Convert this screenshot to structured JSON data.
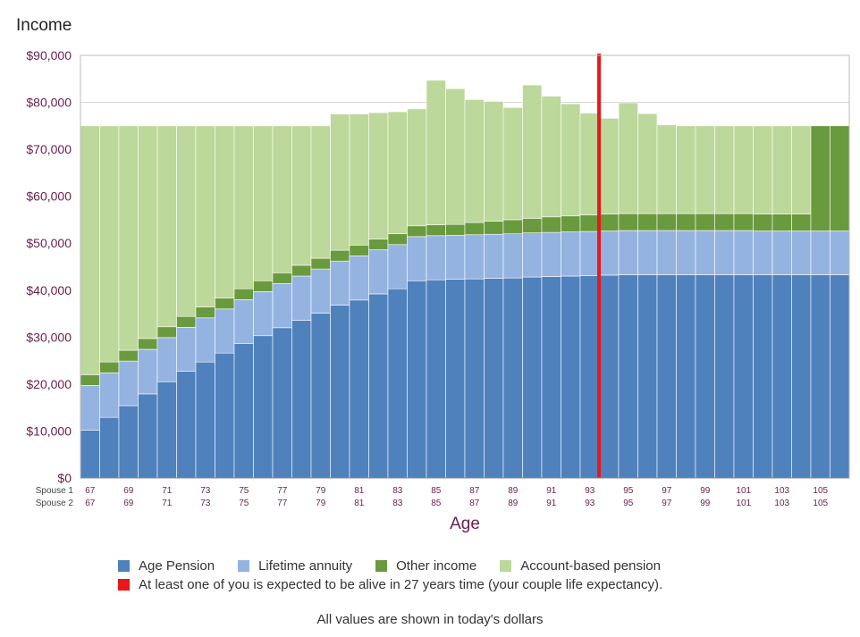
{
  "chart_data": {
    "type": "bar",
    "stacked": true,
    "y_axis_title": "Income",
    "xlabel": "Age",
    "ylim": [
      0,
      90000
    ],
    "yticks": [
      "$0",
      "$10,000",
      "$20,000",
      "$30,000",
      "$40,000",
      "$50,000",
      "$60,000",
      "$70,000",
      "$80,000",
      "$90,000"
    ],
    "row_labels": [
      "Spouse 1",
      "Spouse 2"
    ],
    "x_tick_labels": [
      "67",
      "69",
      "71",
      "73",
      "75",
      "77",
      "79",
      "81",
      "83",
      "85",
      "87",
      "89",
      "91",
      "93",
      "95",
      "97",
      "99",
      "101",
      "103",
      "105"
    ],
    "ages": [
      67,
      68,
      69,
      70,
      71,
      72,
      73,
      74,
      75,
      76,
      77,
      78,
      79,
      80,
      81,
      82,
      83,
      84,
      85,
      86,
      87,
      88,
      89,
      90,
      91,
      92,
      93,
      94,
      95,
      96,
      97,
      98,
      99,
      100,
      101,
      102,
      103,
      104,
      105,
      106
    ],
    "life_expectancy_age": 94,
    "series": [
      {
        "name": "Age Pension",
        "color": "#4f81bd",
        "values": [
          10200,
          12900,
          15400,
          17900,
          20500,
          22700,
          24700,
          26600,
          28600,
          30300,
          32000,
          33600,
          35100,
          36800,
          37900,
          39200,
          40300,
          42000,
          42200,
          42300,
          42400,
          42500,
          42600,
          42800,
          42900,
          43000,
          43100,
          43200,
          43300,
          43300,
          43300,
          43300,
          43300,
          43300,
          43300,
          43300,
          43300,
          43300,
          43300,
          43300
        ]
      },
      {
        "name": "Lifetime annuity",
        "color": "#95b3e0",
        "values": [
          9500,
          9500,
          9500,
          9500,
          9400,
          9400,
          9400,
          9400,
          9400,
          9400,
          9400,
          9400,
          9400,
          9400,
          9400,
          9400,
          9400,
          9400,
          9400,
          9400,
          9400,
          9400,
          9400,
          9400,
          9400,
          9400,
          9400,
          9400,
          9400,
          9400,
          9400,
          9400,
          9400,
          9400,
          9400,
          9300,
          9300,
          9300,
          9300,
          9300
        ]
      },
      {
        "name": "Other income",
        "color": "#6a9a3e",
        "values": [
          2300,
          2300,
          2300,
          2300,
          2300,
          2300,
          2300,
          2300,
          2300,
          2300,
          2300,
          2300,
          2300,
          2300,
          2300,
          2300,
          2300,
          2300,
          2300,
          2300,
          2600,
          2800,
          3000,
          3100,
          3300,
          3400,
          3500,
          3600,
          3600,
          3600,
          3600,
          3600,
          3600,
          3600,
          3600,
          3600,
          3600,
          3600,
          22400,
          22400
        ]
      },
      {
        "name": "Account-based pension",
        "color": "#bdd89b",
        "values": [
          53000,
          50300,
          47800,
          45300,
          42800,
          40600,
          38600,
          36700,
          34700,
          33000,
          31300,
          29700,
          28200,
          29000,
          27900,
          26900,
          26000,
          24900,
          30800,
          28900,
          26200,
          25500,
          23900,
          28400,
          25700,
          23900,
          21700,
          20400,
          23600,
          21300,
          18900,
          18700,
          18700,
          18700,
          18700,
          18800,
          18800,
          18800,
          0,
          0
        ]
      }
    ]
  },
  "legend": {
    "items": [
      {
        "label": "Age Pension",
        "color": "#4f81bd"
      },
      {
        "label": "Lifetime annuity",
        "color": "#95b3e0"
      },
      {
        "label": "Other income",
        "color": "#6a9a3e"
      },
      {
        "label": "Account-based pension",
        "color": "#bdd89b"
      }
    ],
    "life_expectancy": {
      "label": "At least one of you is expected to be alive in 27 years time (your couple life expectancy).",
      "color": "#e8171b"
    }
  },
  "footer_note": "All values are shown in today's dollars"
}
